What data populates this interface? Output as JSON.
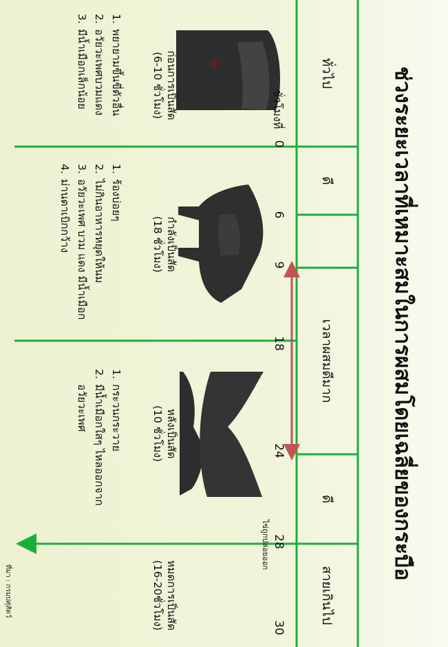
{
  "title": "ช่วงระยะเวลาที่เหมาะสมในการผสมโดยเฉลี่ยของกระบือ",
  "header": {
    "general_1": "ทั่วไป",
    "good_1": "ดี",
    "best": "เวลาผสมดีมาก",
    "good_2": "ดี",
    "too_late": "สายเกินไป"
  },
  "axis": {
    "hour_label": "ชั่วโมงที่",
    "ticks": [
      "0",
      "6",
      "9",
      "18",
      "24",
      "28",
      "30"
    ]
  },
  "ovulation_note": "ไข่ถูกปล่อยออก",
  "stages": {
    "before": {
      "title": "ก่อนการเป็นสัด",
      "duration": "(6-10 ชั่วโมง)"
    },
    "during": {
      "title": "กำลังเป็นสัด",
      "duration": "(18 ชั่วโมง)"
    },
    "after": {
      "title": "หลังเป็นสัด",
      "duration": "(10 ชั่วโมง)"
    },
    "end": {
      "title": "หมดการเป็นสัด",
      "duration": "(16-20ชั่วโมง)"
    }
  },
  "signs": {
    "before": [
      {
        "num": "1.",
        "text": "พยายามขึ้นขี่ตัวอื่น"
      },
      {
        "num": "2.",
        "text": "อวัยวะเพศบวมแดง"
      },
      {
        "num": "3.",
        "text": "มีน้ำเมือกเล็กน้อย"
      }
    ],
    "during": [
      {
        "num": "1.",
        "text": "ร้องบ่อยๆ"
      },
      {
        "num": "2.",
        "text": "ไม่กินอาหารหยุดให้นม"
      },
      {
        "num": "3.",
        "text": "อวัยวะเพศ บวม แดง มีน้ำเมือก"
      },
      {
        "num": "4.",
        "text": "ม่านตาเบิกกว้าง"
      }
    ],
    "after": [
      {
        "num": "1.",
        "text": "กระวนกระวาย"
      },
      {
        "num": "2.",
        "text": "มีน้ำเมือกใสๆ ไหลออกจากอวัยวะเพศ"
      }
    ]
  },
  "source": "ที่มา : กรมปศุสัตว์",
  "colors": {
    "grid": "#1aaf3c",
    "window_arrow": "#c25454",
    "ovulation_arrow": "#1aaf3c"
  }
}
